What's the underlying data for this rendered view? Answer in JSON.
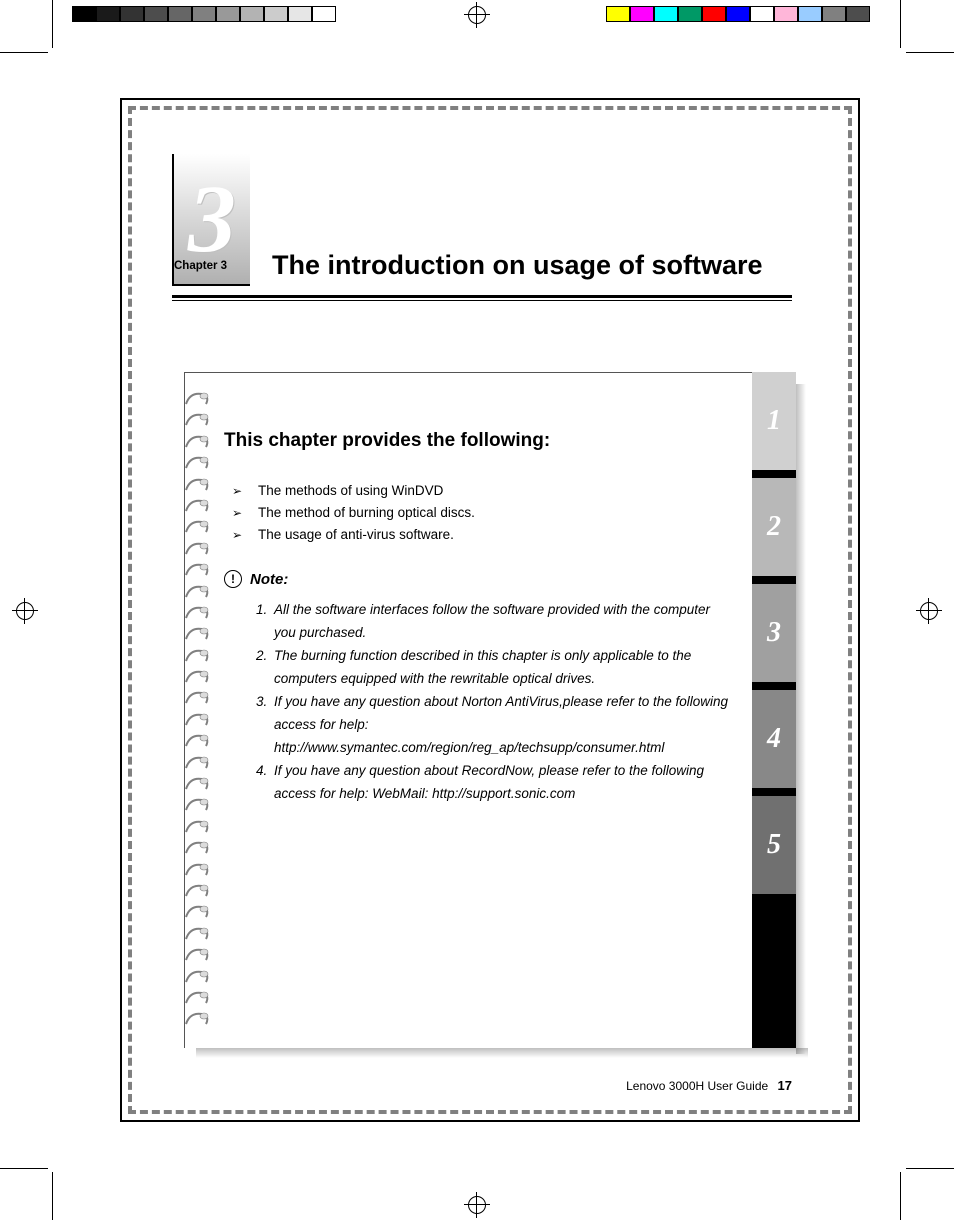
{
  "printer_marks": {
    "left_strip_colors": [
      "#000000",
      "#1a1a1a",
      "#333333",
      "#4d4d4d",
      "#666666",
      "#808080",
      "#999999",
      "#b3b3b3",
      "#cccccc",
      "#e6e6e6",
      "#ffffff"
    ],
    "right_strip_colors": [
      "#ffff00",
      "#ff00ff",
      "#00ffff",
      "#009966",
      "#ff0000",
      "#0000ff",
      "#ffffff",
      "#ffb6d9",
      "#99ccff",
      "#808080",
      "#4d4d4d"
    ]
  },
  "chapter": {
    "number": "3",
    "label": "Chapter 3",
    "title": "The introduction on usage of software",
    "number_color": "#ffffff",
    "box_gradient_top": "#ffffff",
    "box_gradient_bottom": "#b0b0b0"
  },
  "section": {
    "subtitle": "This chapter provides the following:",
    "bullets": [
      "The methods of using WinDVD",
      "The method of burning optical discs.",
      "The usage of anti-virus software."
    ],
    "note_label": "Note:",
    "note_icon_char": "!",
    "notes": [
      "All the software interfaces follow the software provided with the computer you purchased.",
      "The burning function described in this chapter is only applicable to the computers equipped with the rewritable optical drives.",
      "If you have any question about Norton AntiVirus,please refer to the following access for help: http://www.symantec.com/region/reg_ap/techsupp/consumer.html",
      "If you have any question about RecordNow, please refer to the following access for help: WebMail: http://support.sonic.com"
    ]
  },
  "tabs": {
    "labels": [
      "1",
      "2",
      "3",
      "4",
      "5"
    ],
    "tops": [
      372,
      478,
      584,
      690,
      796
    ],
    "colors": [
      "#d0d0d0",
      "#b8b8b8",
      "#a0a0a0",
      "#888888",
      "#707070"
    ],
    "text_color": "#ffffff",
    "active_index": 2,
    "bg_color": "#000000"
  },
  "spiral": {
    "count": 30,
    "ring_stroke": "#808080",
    "ring_highlight": "#dcdcdc"
  },
  "footer": {
    "text": "Lenovo 3000H User Guide",
    "page_number": "17"
  },
  "colors": {
    "page_border": "#000000",
    "dash_border": "#808080",
    "text": "#000000",
    "background": "#ffffff"
  },
  "fonts": {
    "title_size_pt": 20,
    "subtitle_size_pt": 14,
    "body_size_pt": 10,
    "chapter_num_size_pt": 72
  }
}
